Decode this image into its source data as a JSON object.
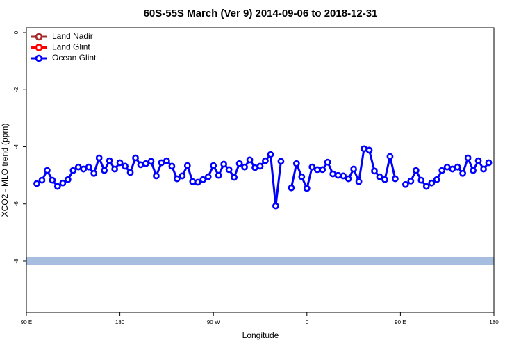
{
  "chart_data": {
    "type": "line",
    "title": "60S-55S March (Ver 9)   2014-09-06 to 2018-12-31",
    "xlabel": "Longitude",
    "ylabel": "XCO2 - MLO trend (ppm)",
    "xlim": [
      90,
      540
    ],
    "ylim": [
      -9.8,
      0.17
    ],
    "xticks": [
      {
        "value": 90,
        "label": "90 E"
      },
      180,
      {
        "value": 270,
        "label": "90 W"
      },
      {
        "value": 360,
        "label": "0"
      },
      {
        "value": 450,
        "label": "90 E"
      },
      {
        "value": 540,
        "label": "180"
      }
    ],
    "yticks": [
      0,
      -2,
      -4,
      -6,
      -8
    ],
    "legend_position": "top-left",
    "x": [
      100,
      105,
      110,
      115,
      120,
      125,
      130,
      135,
      140,
      145,
      150,
      155,
      160,
      165,
      170,
      175,
      180,
      185,
      190,
      195,
      200,
      205,
      210,
      215,
      220,
      225,
      230,
      235,
      240,
      245,
      250,
      255,
      260,
      265,
      270,
      275,
      280,
      285,
      290,
      295,
      300,
      305,
      310,
      315,
      320,
      325,
      330,
      335,
      340,
      345,
      350,
      355,
      360,
      365,
      370,
      375,
      380,
      385,
      390,
      395,
      400,
      405,
      410,
      415,
      420,
      425,
      430,
      435,
      440,
      445,
      450,
      455,
      460,
      465,
      470,
      475,
      480,
      485,
      490,
      495,
      500,
      505,
      510,
      515,
      520,
      525,
      530,
      535
    ],
    "series": [
      {
        "name": "Land Nadir",
        "color": "#a52a2a",
        "values": [
          null,
          null,
          null,
          null,
          null,
          null,
          null,
          null,
          null,
          null,
          null,
          null,
          null,
          null,
          null,
          null,
          null,
          null,
          null,
          null,
          null,
          null,
          null,
          null,
          null,
          null,
          null,
          null,
          null,
          null,
          null,
          null,
          null,
          null,
          null,
          null,
          null,
          null,
          null,
          null,
          null,
          null,
          null,
          null,
          null,
          null,
          null,
          null,
          null,
          null,
          null,
          null,
          null,
          null,
          null,
          null,
          null,
          null,
          null,
          null,
          null,
          null,
          null,
          null,
          null,
          null,
          null,
          null,
          null,
          null,
          null,
          null,
          null,
          null,
          null,
          null,
          null,
          null,
          null,
          null,
          null,
          null,
          null,
          null,
          null,
          null,
          null,
          null
        ]
      },
      {
        "name": "Land Glint",
        "color": "#ff0000",
        "values": [
          null,
          null,
          null,
          null,
          null,
          null,
          null,
          null,
          null,
          null,
          null,
          null,
          null,
          null,
          null,
          null,
          null,
          null,
          null,
          null,
          null,
          null,
          null,
          null,
          null,
          null,
          null,
          null,
          null,
          null,
          null,
          null,
          null,
          null,
          null,
          null,
          null,
          null,
          null,
          null,
          null,
          null,
          null,
          null,
          null,
          null,
          null,
          null,
          null,
          null,
          null,
          null,
          null,
          null,
          null,
          null,
          null,
          null,
          null,
          null,
          null,
          null,
          null,
          null,
          null,
          null,
          null,
          null,
          null,
          null,
          null,
          null,
          null,
          null,
          null,
          null,
          null,
          null,
          null,
          null,
          null,
          null,
          null,
          null,
          null,
          null,
          null,
          null
        ]
      },
      {
        "name": "Ocean Glint",
        "color": "#0000ff",
        "values": [
          -5.29,
          -5.17,
          -4.83,
          -5.17,
          -5.39,
          -5.27,
          -5.15,
          -4.83,
          -4.71,
          -4.78,
          -4.71,
          -4.93,
          -4.39,
          -4.83,
          -4.49,
          -4.78,
          -4.56,
          -4.68,
          -4.9,
          -4.39,
          -4.63,
          -4.59,
          -4.51,
          -5.02,
          -4.56,
          -4.49,
          -4.68,
          -5.12,
          -5.02,
          -4.66,
          -5.22,
          -5.24,
          -5.15,
          -5.05,
          -4.66,
          -5.0,
          -4.61,
          -4.8,
          -5.07,
          -4.59,
          -4.71,
          -4.46,
          -4.73,
          -4.68,
          -4.49,
          -4.27,
          -6.07,
          -4.51,
          null,
          -5.44,
          -4.59,
          -5.05,
          -5.46,
          -4.71,
          -4.8,
          -4.8,
          -4.54,
          -4.95,
          -5.0,
          -5.02,
          -5.12,
          -4.78,
          -5.22,
          -4.07,
          -4.12,
          -4.85,
          -5.05,
          -5.15,
          -4.34,
          -5.12,
          null,
          -5.32,
          -5.2,
          -4.83,
          -5.17,
          -5.39,
          -5.27,
          -5.15,
          -4.83,
          -4.71,
          -4.78,
          -4.71,
          -4.93,
          -4.39,
          -4.83,
          -4.49,
          -4.78,
          -4.56
        ]
      }
    ]
  }
}
